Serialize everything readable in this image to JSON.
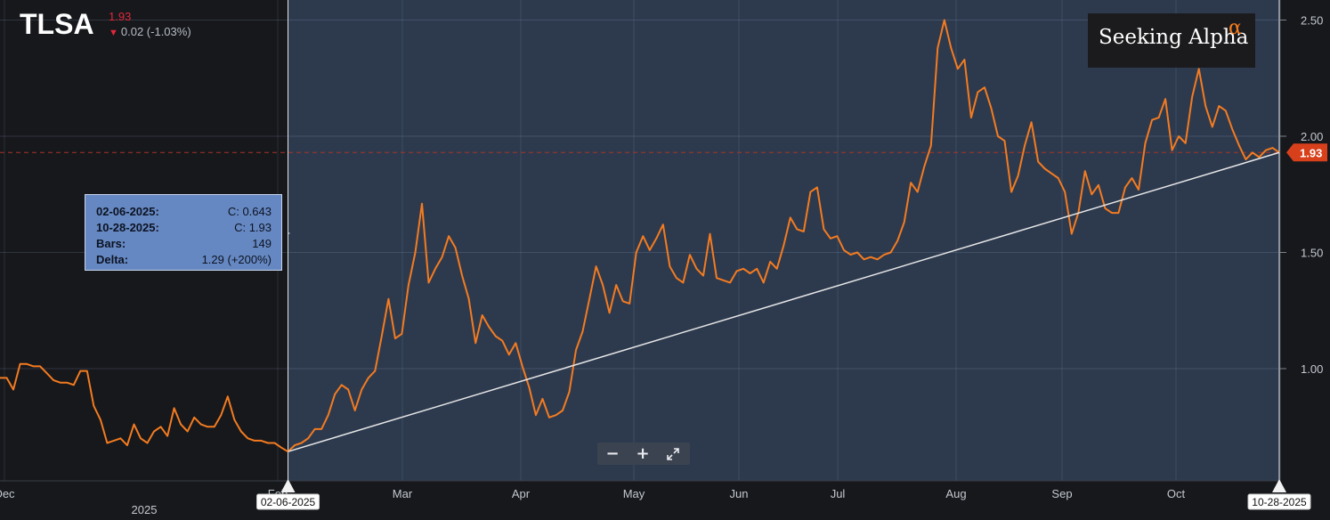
{
  "header": {
    "ticker": "TLSA",
    "price": "1.93",
    "change": "0.02 (-1.03%)",
    "change_direction_icon": "arrow-down-icon"
  },
  "brand": {
    "name": "Seeking Alpha",
    "symbol": "α"
  },
  "measure": {
    "rows": [
      {
        "key": "02-06-2025:",
        "value": "C: 0.643"
      },
      {
        "key": "10-28-2025:",
        "value": "C: 1.93"
      },
      {
        "key": "Bars:",
        "value": "149"
      },
      {
        "key": "Delta:",
        "value": "1.29 (+200%)"
      }
    ],
    "start_date_label": "02-06-2025",
    "end_date_label": "10-28-2025"
  },
  "price_marker": "1.93",
  "zoom_controls": {
    "zoom_out": "−",
    "zoom_in": "+",
    "fullscreen_icon": "expand-icon"
  },
  "colors": {
    "background": "#131519",
    "selection": "#2d3a4e",
    "line": "#f47b20",
    "trend_line": "#e6e6e6",
    "price_marker": "#d8401b",
    "down": "#e0293a"
  },
  "chart_data": {
    "type": "line",
    "title": "TLSA",
    "series": [
      {
        "name": "TLSA",
        "values": [
          0.96,
          0.96,
          0.91,
          1.02,
          1.02,
          1.01,
          1.01,
          0.98,
          0.95,
          0.94,
          0.94,
          0.93,
          0.99,
          0.99,
          0.84,
          0.78,
          0.68,
          0.69,
          0.7,
          0.67,
          0.76,
          0.7,
          0.68,
          0.73,
          0.75,
          0.71,
          0.83,
          0.76,
          0.73,
          0.79,
          0.76,
          0.75,
          0.75,
          0.8,
          0.88,
          0.78,
          0.73,
          0.7,
          0.69,
          0.69,
          0.68,
          0.68,
          0.66,
          0.643,
          0.67,
          0.68,
          0.7,
          0.74,
          0.74,
          0.8,
          0.89,
          0.93,
          0.91,
          0.82,
          0.91,
          0.96,
          0.99,
          1.14,
          1.3,
          1.13,
          1.15,
          1.36,
          1.5,
          1.71,
          1.37,
          1.43,
          1.48,
          1.57,
          1.52,
          1.4,
          1.3,
          1.11,
          1.23,
          1.18,
          1.14,
          1.12,
          1.06,
          1.11,
          1.01,
          0.92,
          0.8,
          0.87,
          0.79,
          0.8,
          0.82,
          0.9,
          1.08,
          1.16,
          1.3,
          1.44,
          1.36,
          1.24,
          1.36,
          1.29,
          1.28,
          1.5,
          1.57,
          1.51,
          1.56,
          1.62,
          1.44,
          1.39,
          1.37,
          1.49,
          1.43,
          1.4,
          1.58,
          1.39,
          1.38,
          1.37,
          1.42,
          1.43,
          1.41,
          1.43,
          1.37,
          1.46,
          1.43,
          1.53,
          1.65,
          1.6,
          1.59,
          1.76,
          1.78,
          1.6,
          1.56,
          1.57,
          1.51,
          1.49,
          1.5,
          1.47,
          1.48,
          1.47,
          1.49,
          1.5,
          1.55,
          1.63,
          1.8,
          1.76,
          1.87,
          1.96,
          2.38,
          2.5,
          2.38,
          2.29,
          2.33,
          2.08,
          2.19,
          2.21,
          2.12,
          2.0,
          1.98,
          1.76,
          1.83,
          1.96,
          2.06,
          1.89,
          1.86,
          1.84,
          1.82,
          1.76,
          1.58,
          1.67,
          1.85,
          1.75,
          1.79,
          1.69,
          1.67,
          1.67,
          1.78,
          1.82,
          1.77,
          1.97,
          2.07,
          2.08,
          2.16,
          1.94,
          2.0,
          1.97,
          2.17,
          2.29,
          2.13,
          2.04,
          2.13,
          2.11,
          2.03,
          1.96,
          1.9,
          1.93,
          1.91,
          1.94,
          1.95,
          1.93
        ],
        "color": "#f47b20"
      }
    ],
    "highlight_range": {
      "start": "02-06-2025",
      "end": "10-28-2025",
      "start_value": 0.643,
      "end_value": 1.93
    },
    "x_axis": {
      "tick_labels": [
        "Dec",
        "Feb",
        "Mar",
        "Apr",
        "May",
        "Jun",
        "Jul",
        "Aug",
        "Sep",
        "Oct"
      ],
      "year_label": "2025"
    },
    "y_axis": {
      "side": "right",
      "ticks": [
        1.0,
        1.5,
        2.0,
        2.5
      ],
      "tick_labels": [
        "1.00",
        "1.50",
        "2.00",
        "2.50"
      ],
      "range": [
        0.46,
        2.58
      ]
    },
    "last_price": 1.93,
    "grid": true
  }
}
